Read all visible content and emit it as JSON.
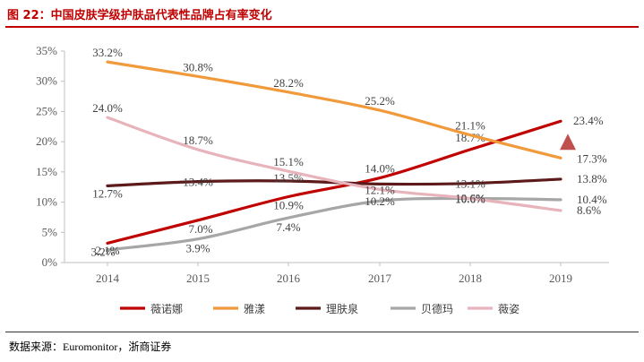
{
  "header": {
    "title": "图 22：中国皮肤学级护肤品代表性品牌占有率变化"
  },
  "footer": {
    "source": "数据来源：Euromonitor，浙商证券"
  },
  "colors": {
    "series": [
      "#c00000",
      "#f09a3c",
      "#5c1a1a",
      "#a6a6a6",
      "#e8b4bc"
    ],
    "axis": "#bfbfbf",
    "text": "#595959",
    "marker": "#c0504d"
  },
  "chart_data": {
    "type": "line",
    "title": "中国皮肤学级护肤品代表性品牌占有率变化",
    "xlabel": "",
    "ylabel": "",
    "x": [
      "2014",
      "2015",
      "2016",
      "2017",
      "2018",
      "2019"
    ],
    "ylim": [
      0,
      35
    ],
    "yticks": [
      "0%",
      "5%",
      "10%",
      "15%",
      "20%",
      "25%",
      "30%",
      "35%"
    ],
    "legend_position": "bottom",
    "series": [
      {
        "name": "薇诺娜",
        "values": [
          3.2,
          7.0,
          10.9,
          14.0,
          18.7,
          23.4
        ],
        "labels": [
          "3.2%",
          "7.0%",
          "10.9%",
          "14.0%",
          "18.7%",
          "23.4%"
        ]
      },
      {
        "name": "雅漾",
        "values": [
          33.2,
          30.8,
          28.2,
          25.2,
          21.1,
          17.3
        ],
        "labels": [
          "33.2%",
          "30.8%",
          "28.2%",
          "25.2%",
          "21.1%",
          "17.3%"
        ]
      },
      {
        "name": "理肤泉",
        "values": [
          12.7,
          13.4,
          13.5,
          13.0,
          13.1,
          13.8
        ],
        "labels": [
          "12.7%",
          "13.4%",
          "13.5%",
          "",
          "13.1%",
          "13.8%"
        ]
      },
      {
        "name": "贝德玛",
        "values": [
          2.1,
          3.9,
          7.4,
          10.2,
          10.6,
          10.4
        ],
        "labels": [
          "2.1%",
          "3.9%",
          "7.4%",
          "10.2%",
          "10.6%",
          "10.4%"
        ]
      },
      {
        "name": "薇姿",
        "values": [
          24.0,
          18.7,
          15.1,
          12.1,
          10.6,
          8.6
        ],
        "labels": [
          "24.0%",
          "18.7%",
          "15.1%",
          "12.1%",
          "10.6%",
          "8.6%"
        ]
      }
    ],
    "annotation": {
      "type": "up-triangle",
      "series": "薇诺娜",
      "x": "2019"
    }
  }
}
